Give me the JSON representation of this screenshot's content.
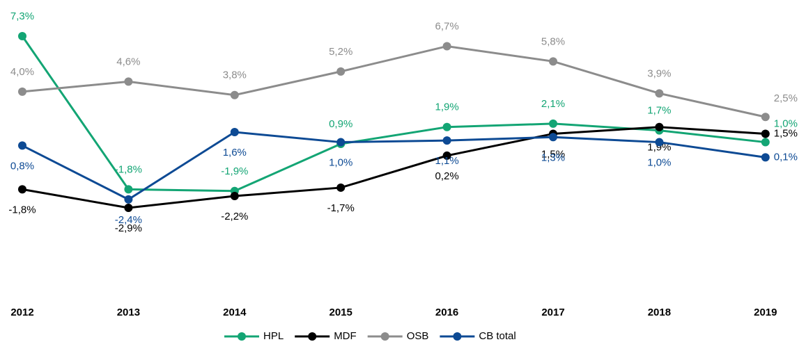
{
  "chart_data": {
    "type": "line",
    "categories": [
      "2012",
      "2013",
      "2014",
      "2015",
      "2016",
      "2017",
      "2018",
      "2019"
    ],
    "series": [
      {
        "name": "HPL",
        "color": "#13a574",
        "values": [
          7.3,
          -1.8,
          -1.9,
          0.9,
          1.9,
          2.1,
          1.7,
          1.0
        ],
        "value_labels": [
          "7,3%",
          "-1,8%",
          "-1,9%",
          "0,9%",
          "1,9%",
          "2,1%",
          "1,7%",
          "1,0%"
        ]
      },
      {
        "name": "MDF",
        "color": "#000000",
        "values": [
          -1.8,
          -2.9,
          -2.2,
          -1.7,
          0.2,
          1.5,
          1.9,
          1.5
        ],
        "value_labels": [
          "-1,8%",
          "-2,9%",
          "-2,2%",
          "-1,7%",
          "0,2%",
          "1,5%",
          "1,9%",
          "1,5%"
        ]
      },
      {
        "name": "OSB",
        "color": "#8c8c8c",
        "values": [
          4.0,
          4.6,
          3.8,
          5.2,
          6.7,
          5.8,
          3.9,
          2.5
        ],
        "value_labels": [
          "4,0%",
          "4,6%",
          "3,8%",
          "5,2%",
          "6,7%",
          "5,8%",
          "3,9%",
          "2,5%"
        ]
      },
      {
        "name": "CB total",
        "color": "#0d4a94",
        "values": [
          0.8,
          -2.4,
          1.6,
          1.0,
          1.1,
          1.3,
          1.0,
          0.1
        ],
        "value_labels": [
          "0,8%",
          "-2,4%",
          "1,6%",
          "1,0%",
          "1,1%",
          "1,3%",
          "1,0%",
          "0,1%"
        ]
      }
    ],
    "legend": "bottom"
  }
}
